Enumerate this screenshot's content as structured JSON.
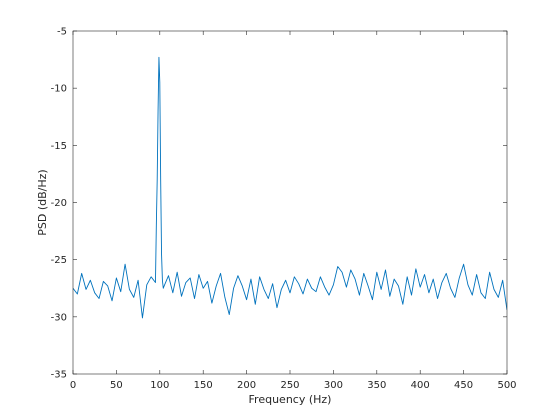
{
  "chart_data": {
    "type": "line",
    "title": "",
    "xlabel": "Frequency (Hz)",
    "ylabel": "PSD (dB/Hz)",
    "xlim": [
      0,
      500
    ],
    "ylim": [
      -35,
      -5
    ],
    "x_ticks": [
      0,
      50,
      100,
      150,
      200,
      250,
      300,
      350,
      400,
      450,
      500
    ],
    "y_ticks": [
      -35,
      -30,
      -25,
      -20,
      -15,
      -10,
      -5
    ],
    "x_tick_labels": [
      "0",
      "50",
      "100",
      "150",
      "200",
      "250",
      "300",
      "350",
      "400",
      "450",
      "500"
    ],
    "y_tick_labels": [
      "-35",
      "-30",
      "-25",
      "-20",
      "-15",
      "-10",
      "-5"
    ],
    "grid": false,
    "box": true,
    "colors": {
      "line": "#0072BD",
      "axes": "#262626",
      "background": "#ffffff"
    },
    "series": [
      {
        "x": [
          0,
          5,
          10,
          15,
          20,
          25,
          30,
          35,
          40,
          45,
          50,
          55,
          60,
          65,
          70,
          75,
          80,
          85,
          90,
          95,
          96,
          97,
          98,
          99,
          100,
          101,
          102,
          103,
          104,
          105,
          110,
          115,
          120,
          125,
          130,
          135,
          140,
          145,
          150,
          155,
          160,
          165,
          170,
          175,
          180,
          185,
          190,
          195,
          200,
          205,
          210,
          215,
          220,
          225,
          230,
          235,
          240,
          245,
          250,
          255,
          260,
          265,
          270,
          275,
          280,
          285,
          290,
          295,
          300,
          305,
          310,
          315,
          320,
          325,
          330,
          335,
          340,
          345,
          350,
          355,
          360,
          365,
          370,
          375,
          380,
          385,
          390,
          395,
          400,
          405,
          410,
          415,
          420,
          425,
          430,
          435,
          440,
          445,
          450,
          455,
          460,
          465,
          470,
          475,
          480,
          485,
          490,
          495,
          500
        ],
        "y": [
          -27.5,
          -28.0,
          -26.2,
          -27.6,
          -26.8,
          -27.9,
          -28.4,
          -26.9,
          -27.3,
          -28.6,
          -26.6,
          -27.8,
          -25.4,
          -27.6,
          -28.3,
          -26.8,
          -30.1,
          -27.2,
          -26.5,
          -27.0,
          -22.0,
          -18.0,
          -12.0,
          -7.3,
          -9.5,
          -18.0,
          -24.5,
          -26.8,
          -27.5,
          -27.3,
          -26.4,
          -27.9,
          -26.1,
          -28.2,
          -27.0,
          -26.6,
          -28.4,
          -26.3,
          -27.5,
          -26.9,
          -28.8,
          -27.3,
          -26.2,
          -28.3,
          -29.8,
          -27.5,
          -26.4,
          -27.3,
          -28.5,
          -26.7,
          -28.9,
          -26.5,
          -27.6,
          -28.4,
          -27.1,
          -29.2,
          -27.6,
          -26.8,
          -27.9,
          -26.5,
          -27.1,
          -28.0,
          -26.7,
          -27.5,
          -27.8,
          -26.5,
          -27.4,
          -28.1,
          -27.2,
          -25.6,
          -26.1,
          -27.4,
          -25.9,
          -26.7,
          -28.1,
          -26.2,
          -27.3,
          -28.5,
          -26.1,
          -27.6,
          -25.9,
          -28.2,
          -26.7,
          -27.3,
          -28.9,
          -26.5,
          -28.1,
          -25.8,
          -27.4,
          -26.3,
          -27.9,
          -26.7,
          -28.4,
          -27.0,
          -26.2,
          -27.5,
          -28.3,
          -26.6,
          -25.4,
          -27.2,
          -28.1,
          -26.3,
          -27.9,
          -28.4,
          -26.1,
          -27.6,
          -28.3,
          -26.8,
          -29.4
        ]
      }
    ]
  }
}
